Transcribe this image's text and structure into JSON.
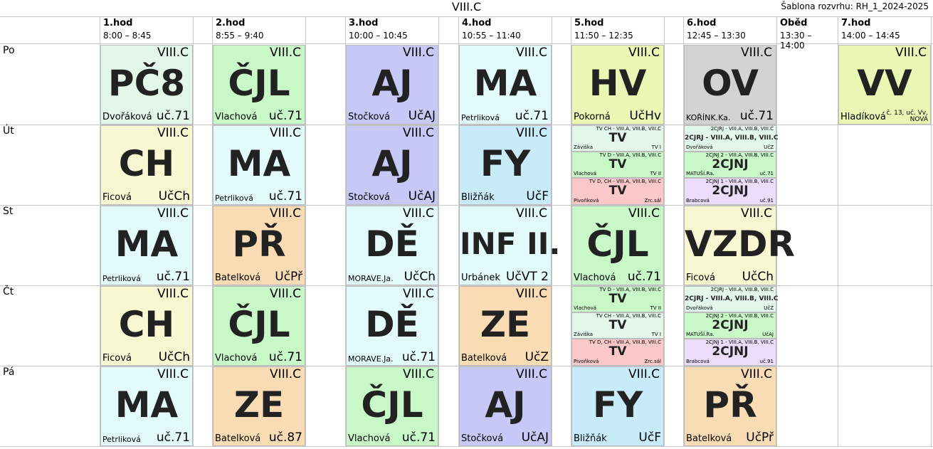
{
  "title": "VIII.C",
  "template_label": "Šablona rozvrhu: RH_1_2024-2025",
  "periods": [
    {
      "name": "1.hod",
      "time": "8:00 – 8:45"
    },
    {
      "name": "2.hod",
      "time": "8:55 – 9:40"
    },
    {
      "name": "3.hod",
      "time": "10:00 – 10:45"
    },
    {
      "name": "4.hod",
      "time": "10:55 – 11:40"
    },
    {
      "name": "5.hod",
      "time": "11:50 – 12:35"
    },
    {
      "name": "6.hod",
      "time": "12:45 – 13:30"
    },
    {
      "name": "Oběd",
      "time": "13:30 – 14:00"
    },
    {
      "name": "7.hod",
      "time": "14:00 – 14:45"
    }
  ],
  "days": [
    "Po",
    "Út",
    "St",
    "Čt",
    "Pá"
  ],
  "lessons": [
    {
      "day": 0,
      "col": 0,
      "cls": "VIII.C",
      "subject": "PČ8",
      "teacher": "Dvořáková",
      "room": "uč.71",
      "color": "#e3f6ea"
    },
    {
      "day": 0,
      "col": 1,
      "cls": "VIII.C",
      "subject": "ČJL",
      "teacher": "Vlachová",
      "room": "uč.71",
      "color": "#c8f7c8"
    },
    {
      "day": 0,
      "col": 2,
      "cls": "VIII.C",
      "subject": "AJ",
      "teacher": "Stočková",
      "room": "UčAJ",
      "color": "#c8c8f7"
    },
    {
      "day": 0,
      "col": 3,
      "cls": "VIII.C",
      "subject": "MA",
      "teacher": "Petrliková",
      "room": "uč.71",
      "color": "#e3fafa"
    },
    {
      "day": 0,
      "col": 4,
      "cls": "VIII.C",
      "subject": "HV",
      "teacher": "Pokorná",
      "room": "UčHv",
      "color": "#e8f7b4"
    },
    {
      "day": 0,
      "col": 5,
      "cls": "VIII.C",
      "subject": "OV",
      "teacher": "KOŘÍNK.Ka.",
      "room": "uč.71",
      "color": "#d3d3d3"
    },
    {
      "day": 0,
      "col": 7,
      "cls": "VIII.C",
      "subject": "VV",
      "teacher": "Hladíková",
      "room": "č. 13, uč. Vv, NOVÁ",
      "color": "#e8f7b4"
    },
    {
      "day": 1,
      "col": 0,
      "cls": "VIII.C",
      "subject": "CH",
      "teacher": "Ficová",
      "room": "UčCh",
      "color": "#f7f7d2"
    },
    {
      "day": 1,
      "col": 1,
      "cls": "VIII.C",
      "subject": "MA",
      "teacher": "Petrliková",
      "room": "uč.71",
      "color": "#e3fafa"
    },
    {
      "day": 1,
      "col": 2,
      "cls": "VIII.C",
      "subject": "AJ",
      "teacher": "Stočková",
      "room": "UčAJ",
      "color": "#c8c8f7"
    },
    {
      "day": 1,
      "col": 3,
      "cls": "VIII.C",
      "subject": "FY",
      "teacher": "Bližňák",
      "room": "UčF",
      "color": "#c8ebfa"
    },
    {
      "day": 2,
      "col": 0,
      "cls": "VIII.C",
      "subject": "MA",
      "teacher": "Petrliková",
      "room": "uč.71",
      "color": "#e3fafa"
    },
    {
      "day": 2,
      "col": 1,
      "cls": "VIII.C",
      "subject": "PŘ",
      "teacher": "Batelková",
      "room": "UčPř",
      "color": "#fadcb4"
    },
    {
      "day": 2,
      "col": 2,
      "cls": "VIII.C",
      "subject": "DĚ",
      "teacher": "MORAVE.Ja.",
      "room": "UčCh",
      "color": "#e3fafa"
    },
    {
      "day": 2,
      "col": 3,
      "cls": "VIII.C",
      "subject": "INF II.",
      "teacher": "Urbánek",
      "room": "UčVT 2",
      "color": "#e3fafa"
    },
    {
      "day": 2,
      "col": 4,
      "cls": "VIII.C",
      "subject": "ČJL",
      "teacher": "Vlachová",
      "room": "uč.71",
      "color": "#c8f7c8"
    },
    {
      "day": 2,
      "col": 5,
      "cls": "VIII.C",
      "subject": "VZDR",
      "teacher": "Ficová",
      "room": "UčCh",
      "color": "#f7f7d2"
    },
    {
      "day": 3,
      "col": 0,
      "cls": "VIII.C",
      "subject": "CH",
      "teacher": "Ficová",
      "room": "UčCh",
      "color": "#f7f7d2"
    },
    {
      "day": 3,
      "col": 1,
      "cls": "VIII.C",
      "subject": "ČJL",
      "teacher": "Vlachová",
      "room": "uč.71",
      "color": "#c8f7c8"
    },
    {
      "day": 3,
      "col": 2,
      "cls": "VIII.C",
      "subject": "DĚ",
      "teacher": "MORAVE.Ja.",
      "room": "uč.71",
      "color": "#e3fafa"
    },
    {
      "day": 3,
      "col": 3,
      "cls": "VIII.C",
      "subject": "ZE",
      "teacher": "Batelková",
      "room": "UčZ",
      "color": "#fadcb4"
    },
    {
      "day": 4,
      "col": 0,
      "cls": "VIII.C",
      "subject": "MA",
      "teacher": "Petrliková",
      "room": "uč.71",
      "color": "#e3fafa"
    },
    {
      "day": 4,
      "col": 1,
      "cls": "VIII.C",
      "subject": "ZE",
      "teacher": "Batelková",
      "room": "uč.87",
      "color": "#fadcb4"
    },
    {
      "day": 4,
      "col": 2,
      "cls": "VIII.C",
      "subject": "ČJL",
      "teacher": "Vlachová",
      "room": "uč.71",
      "color": "#c8f7c8"
    },
    {
      "day": 4,
      "col": 3,
      "cls": "VIII.C",
      "subject": "AJ",
      "teacher": "Stočková",
      "room": "UčAJ",
      "color": "#c8c8f7"
    },
    {
      "day": 4,
      "col": 4,
      "cls": "VIII.C",
      "subject": "FY",
      "teacher": "Bližňák",
      "room": "UčF",
      "color": "#c8ebfa"
    },
    {
      "day": 4,
      "col": 5,
      "cls": "VIII.C",
      "subject": "PŘ",
      "teacher": "Batelková",
      "room": "UčPř",
      "color": "#fadcb4"
    }
  ],
  "split_lessons": [
    {
      "day": 1,
      "col": 4,
      "groups": "TV CH - VIII.A, VIII.B, VIII.C",
      "subject": "TV",
      "teacher": "Záviška",
      "room": "TV I",
      "color": "#e3f6ea"
    },
    {
      "day": 1,
      "col": 4,
      "groups": "TV D - VIII.A, VIII.B, VIII.C",
      "subject": "TV",
      "teacher": "Vlachová",
      "room": "TV II",
      "color": "#c8f7c8"
    },
    {
      "day": 1,
      "col": 4,
      "groups": "TV D, CH - VIII.A, VIII.B, VIII.C",
      "subject": "TV",
      "teacher": "Pivoňková",
      "room": "Zrc.sál",
      "color": "#fac8c8"
    },
    {
      "day": 1,
      "col": 5,
      "groups": "2CJRJ - VIII.A, VIII.B, VIII.C",
      "subject": "2CJRJ - VIII.A, VIII.B, VIII.C",
      "teacher": "Dvořáková",
      "room": "UčZ",
      "color": "#e3f6ea",
      "small": true
    },
    {
      "day": 1,
      "col": 5,
      "groups": "2CJNJ 2 - VIII.A, VIII.B, VIII.C",
      "subject": "2CJNJ",
      "teacher": "MATUŠÍ.Ra.",
      "room": "uč.71",
      "color": "#c8f7c8"
    },
    {
      "day": 1,
      "col": 5,
      "groups": "2CJNJ 1 - VIII.A, VIII.B, VIII.C",
      "subject": "2CJNJ",
      "teacher": "Brabcová",
      "room": "uč.91",
      "color": "#ebdcfa"
    },
    {
      "day": 3,
      "col": 4,
      "groups": "TV D - VIII.A, VIII.B, VIII.C",
      "subject": "TV",
      "teacher": "Vlachová",
      "room": "TV II",
      "color": "#c8f7c8"
    },
    {
      "day": 3,
      "col": 4,
      "groups": "TV CH - VIII.A, VIII.B, VIII.C",
      "subject": "TV",
      "teacher": "Záviška",
      "room": "TV I",
      "color": "#e3f6ea"
    },
    {
      "day": 3,
      "col": 4,
      "groups": "TV D, CH - VIII.A, VIII.B, VIII.C",
      "subject": "TV",
      "teacher": "Pivoňková",
      "room": "Zrc.sál",
      "color": "#fac8c8"
    },
    {
      "day": 3,
      "col": 5,
      "groups": "2CJRJ - VIII.A, VIII.B, VIII.C",
      "subject": "2CJRJ - VIII.A, VIII.B, VIII.C",
      "teacher": "Dvořáková",
      "room": "UčZ",
      "color": "#e3f6ea",
      "small": true
    },
    {
      "day": 3,
      "col": 5,
      "groups": "2CJNJ 2 - VIII.A, VIII.B, VIII.C",
      "subject": "2CJNJ",
      "teacher": "MATUŠÍ.Ra.",
      "room": "UčAJ",
      "color": "#c8f7c8"
    },
    {
      "day": 3,
      "col": 5,
      "groups": "2CJNJ 1 - VIII.A, VIII.B, VIII.C",
      "subject": "2CJNJ",
      "teacher": "Brabcová",
      "room": "uč.91",
      "color": "#ebdcfa"
    }
  ]
}
